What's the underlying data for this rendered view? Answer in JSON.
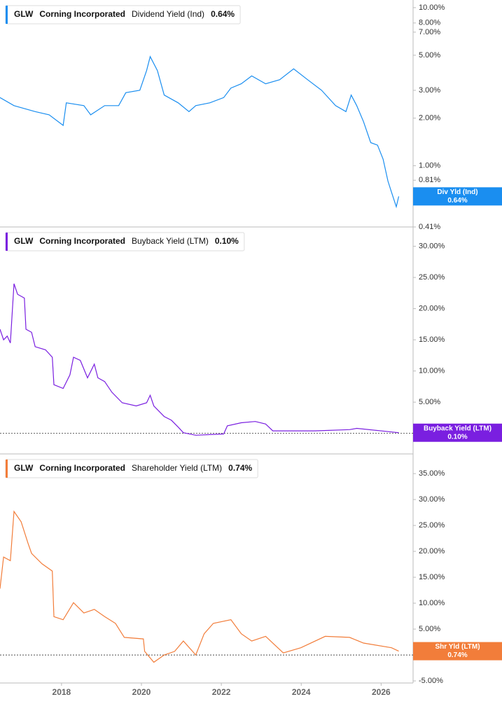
{
  "chart_data": [
    {
      "type": "line",
      "ticker": "GLW",
      "company": "Corning Incorporated",
      "last_label": "0.64%",
      "badge_title": "Div Yld (Ind)",
      "log_scale": true,
      "zero_line": false,
      "x": [
        2016.46,
        2016.81,
        2017.34,
        2017.69,
        2018.04,
        2018.12,
        2018.56,
        2018.73,
        2019.08,
        2019.43,
        2019.61,
        2019.96,
        2020.13,
        2020.22,
        2020.4,
        2020.57,
        2020.92,
        2021.19,
        2021.36,
        2021.71,
        2022.06,
        2022.24,
        2022.5,
        2022.76,
        2023.11,
        2023.46,
        2023.81,
        2024.16,
        2024.51,
        2024.86,
        2025.12,
        2025.25,
        2025.39,
        2025.56,
        2025.74,
        2025.91,
        2026.05,
        2026.17,
        2026.26,
        2026.38,
        2026.44
      ],
      "series": [
        {
          "name": "Dividend Yield (Ind)",
          "color": "#1a8ef0",
          "values": [
            2.7,
            2.4,
            2.2,
            2.1,
            1.8,
            2.5,
            2.4,
            2.1,
            2.4,
            2.4,
            2.9,
            3.0,
            4.0,
            4.9,
            4.0,
            2.8,
            2.5,
            2.2,
            2.4,
            2.5,
            2.7,
            3.1,
            3.3,
            3.7,
            3.3,
            3.5,
            4.1,
            3.5,
            3.0,
            2.4,
            2.2,
            2.8,
            2.4,
            1.9,
            1.4,
            1.35,
            1.1,
            0.8,
            0.68,
            0.55,
            0.64
          ]
        }
      ],
      "xlim": [
        2016.46,
        2026.8
      ],
      "ylim": [
        0.41,
        11.18
      ],
      "yticks": [
        {
          "value": 10,
          "label": "10.00%"
        },
        {
          "value": 8,
          "label": "8.00%"
        },
        {
          "value": 7,
          "label": "7.00%"
        },
        {
          "value": 5,
          "label": "5.00%"
        },
        {
          "value": 3,
          "label": "3.00%"
        },
        {
          "value": 2,
          "label": "2.00%"
        },
        {
          "value": 1,
          "label": "1.00%"
        },
        {
          "value": 0.81,
          "label": "0.81%"
        },
        {
          "value": 0.41,
          "label": "0.41%"
        }
      ]
    },
    {
      "type": "line",
      "ticker": "GLW",
      "company": "Corning Incorporated",
      "last_label": "0.10%",
      "badge_title": "Buyback Yield (LTM)",
      "log_scale": false,
      "zero_line": true,
      "x": [
        2016.46,
        2016.55,
        2016.64,
        2016.72,
        2016.81,
        2016.9,
        2017.07,
        2017.11,
        2017.25,
        2017.34,
        2017.6,
        2017.77,
        2017.81,
        2018.04,
        2018.21,
        2018.3,
        2018.47,
        2018.65,
        2018.82,
        2018.91,
        2019.08,
        2019.26,
        2019.52,
        2019.87,
        2020.13,
        2020.22,
        2020.31,
        2020.57,
        2020.75,
        2020.92,
        2021.05,
        2021.36,
        2022.06,
        2022.15,
        2022.5,
        2022.85,
        2023.11,
        2023.29,
        2024.33,
        2025.21,
        2025.39,
        2026.44
      ],
      "series": [
        {
          "name": "Buyback Yield (LTM)",
          "color": "#7a1fe0",
          "values": [
            16.7,
            15,
            15.6,
            14.5,
            24,
            22.3,
            21.7,
            16.7,
            16.2,
            13.9,
            13.4,
            12.2,
            7.8,
            7.2,
            9.4,
            12.2,
            11.7,
            8.9,
            11.1,
            8.9,
            8.3,
            6.6,
            4.9,
            4.4,
            4.9,
            6.1,
            4.4,
            2.7,
            2.1,
            1.0,
            0.1,
            -0.3,
            -0.1,
            1.2,
            1.7,
            1.9,
            1.5,
            0.4,
            0.4,
            0.6,
            0.8,
            0.1
          ]
        }
      ],
      "xlim": [
        2016.46,
        2026.8
      ],
      "ylim": [
        -3.3,
        33.1
      ],
      "yticks": [
        {
          "value": 30,
          "label": "30.00%"
        },
        {
          "value": 25,
          "label": "25.00%"
        },
        {
          "value": 20,
          "label": "20.00%"
        },
        {
          "value": 15,
          "label": "15.00%"
        },
        {
          "value": 10,
          "label": "10.00%"
        },
        {
          "value": 5,
          "label": "5.00%"
        }
      ]
    },
    {
      "type": "line",
      "ticker": "GLW",
      "company": "Corning Incorporated",
      "last_label": "0.74%",
      "badge_title": "Shr Yld (LTM)",
      "log_scale": false,
      "zero_line": true,
      "x": [
        2016.46,
        2016.55,
        2016.72,
        2016.81,
        2016.99,
        2017.16,
        2017.25,
        2017.51,
        2017.77,
        2017.81,
        2018.04,
        2018.3,
        2018.56,
        2018.82,
        2019.08,
        2019.35,
        2019.57,
        2020.05,
        2020.08,
        2020.31,
        2020.57,
        2020.83,
        2021.05,
        2021.36,
        2021.57,
        2021.8,
        2022.24,
        2022.5,
        2022.76,
        2023.11,
        2023.55,
        2023.99,
        2024.6,
        2025.21,
        2025.56,
        2026.26,
        2026.44
      ],
      "series": [
        {
          "name": "Shareholder Yield (LTM)",
          "color": "#f27d3a",
          "values": [
            12.8,
            18.9,
            18.2,
            27.7,
            25.7,
            21.6,
            19.6,
            17.6,
            16.2,
            7.4,
            6.8,
            10.1,
            8.1,
            8.8,
            7.4,
            6.1,
            3.4,
            3.1,
            0.7,
            -1.4,
            0,
            0.7,
            2.7,
            0,
            4.1,
            6.1,
            6.8,
            4.1,
            2.7,
            3.6,
            0.4,
            1.4,
            3.6,
            3.4,
            2.3,
            1.4,
            0.74
          ]
        }
      ],
      "xlim": [
        2016.46,
        2026.8
      ],
      "ylim": [
        -5.4,
        38.8
      ],
      "yticks": [
        {
          "value": 35,
          "label": "35.00%"
        },
        {
          "value": 30,
          "label": "30.00%"
        },
        {
          "value": 25,
          "label": "25.00%"
        },
        {
          "value": 20,
          "label": "20.00%"
        },
        {
          "value": 15,
          "label": "15.00%"
        },
        {
          "value": 10,
          "label": "10.00%"
        },
        {
          "value": 5,
          "label": "5.00%"
        },
        {
          "value": -5,
          "label": "-5.00%"
        }
      ],
      "xticks": [
        2018,
        2020,
        2022,
        2024,
        2026
      ]
    }
  ]
}
